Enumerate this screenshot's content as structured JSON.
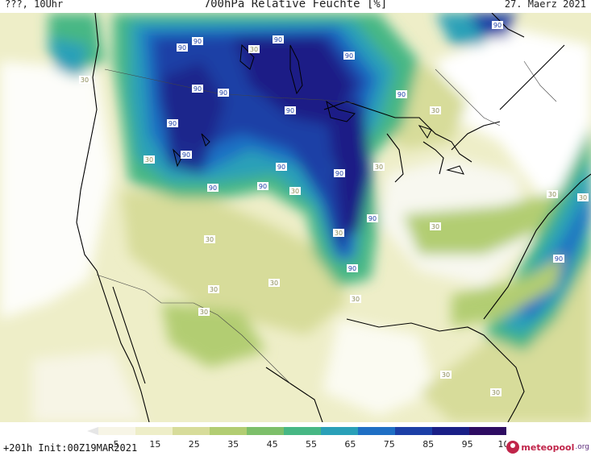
{
  "header": {
    "location_time": "???, 10Uhr",
    "title": "700hPa Relative Feuchte [%]",
    "date": "27. Maerz 2021"
  },
  "footer": {
    "run_info": "+201h Init:00Z19MAR2021",
    "brand_name": "meteopool",
    "brand_tld": ".org"
  },
  "legend": {
    "ticks": [
      "5",
      "15",
      "25",
      "35",
      "45",
      "55",
      "65",
      "75",
      "85",
      "95",
      "100"
    ],
    "colors": [
      "#ffffff",
      "#f7f5e6",
      "#eeeec8",
      "#d7dc9a",
      "#b2cd72",
      "#7dbf6a",
      "#47b784",
      "#2aa0b8",
      "#1f6fc4",
      "#1c3fa6",
      "#1a1f86",
      "#2e0c62"
    ]
  },
  "contour_labels": {
    "high": "90",
    "low": "30"
  }
}
